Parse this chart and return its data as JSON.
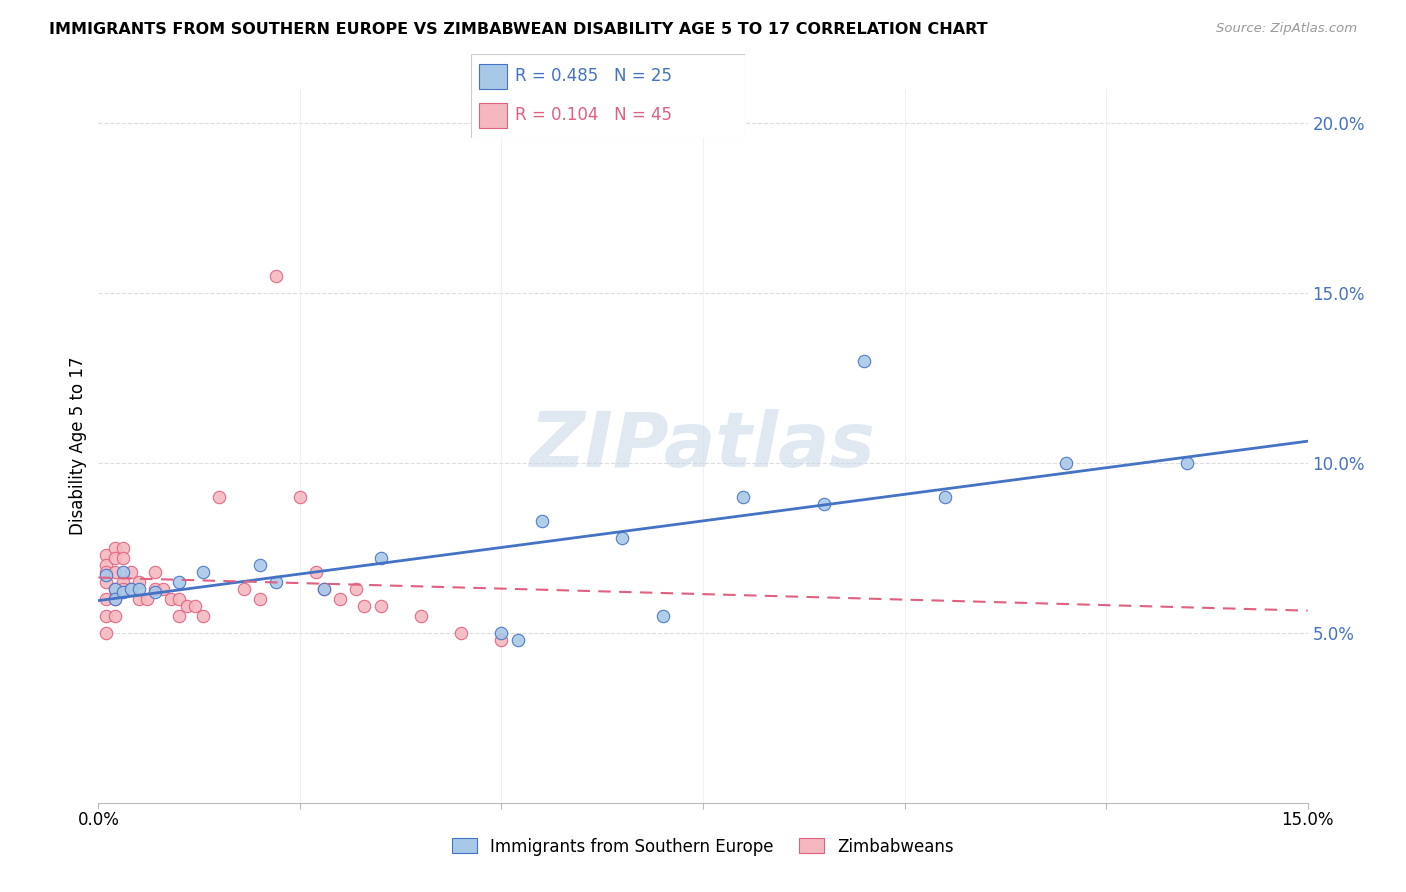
{
  "title": "IMMIGRANTS FROM SOUTHERN EUROPE VS ZIMBABWEAN DISABILITY AGE 5 TO 17 CORRELATION CHART",
  "source": "Source: ZipAtlas.com",
  "ylabel": "Disability Age 5 to 17",
  "legend1_R": 0.485,
  "legend1_N": 25,
  "legend2_R": 0.104,
  "legend2_N": 45,
  "blue_color": "#a8c8e8",
  "pink_color": "#f4b8c0",
  "blue_line_color": "#4472c4",
  "pink_line_color": "#e06080",
  "watermark": "ZIPatlas",
  "blue_scatter_x": [
    0.001,
    0.002,
    0.002,
    0.003,
    0.003,
    0.004,
    0.005,
    0.007,
    0.01,
    0.013,
    0.02,
    0.022,
    0.028,
    0.035,
    0.05,
    0.052,
    0.055,
    0.065,
    0.07,
    0.08,
    0.09,
    0.095,
    0.105,
    0.12,
    0.135
  ],
  "blue_scatter_y": [
    0.067,
    0.063,
    0.06,
    0.068,
    0.062,
    0.063,
    0.063,
    0.062,
    0.065,
    0.068,
    0.07,
    0.065,
    0.063,
    0.072,
    0.05,
    0.048,
    0.083,
    0.078,
    0.055,
    0.09,
    0.088,
    0.13,
    0.09,
    0.1,
    0.1
  ],
  "pink_scatter_x": [
    0.001,
    0.001,
    0.001,
    0.001,
    0.001,
    0.001,
    0.001,
    0.002,
    0.002,
    0.002,
    0.002,
    0.002,
    0.002,
    0.003,
    0.003,
    0.003,
    0.003,
    0.004,
    0.004,
    0.005,
    0.005,
    0.006,
    0.007,
    0.007,
    0.008,
    0.009,
    0.01,
    0.01,
    0.011,
    0.012,
    0.013,
    0.015,
    0.018,
    0.02,
    0.022,
    0.025,
    0.027,
    0.028,
    0.03,
    0.032,
    0.033,
    0.035,
    0.04,
    0.045,
    0.05
  ],
  "pink_scatter_y": [
    0.073,
    0.07,
    0.068,
    0.065,
    0.06,
    0.055,
    0.05,
    0.075,
    0.072,
    0.068,
    0.063,
    0.06,
    0.055,
    0.075,
    0.072,
    0.065,
    0.063,
    0.068,
    0.063,
    0.065,
    0.06,
    0.06,
    0.068,
    0.063,
    0.063,
    0.06,
    0.06,
    0.055,
    0.058,
    0.058,
    0.055,
    0.09,
    0.063,
    0.06,
    0.155,
    0.09,
    0.068,
    0.063,
    0.06,
    0.063,
    0.058,
    0.058,
    0.055,
    0.05,
    0.048
  ],
  "xlim": [
    0.0,
    0.15
  ],
  "ylim": [
    0.0,
    0.21
  ],
  "xticks": [
    0.0,
    0.025,
    0.05,
    0.075,
    0.1,
    0.125,
    0.15
  ],
  "yticks_right": [
    0.05,
    0.1,
    0.15,
    0.2
  ],
  "marker_size": 80
}
